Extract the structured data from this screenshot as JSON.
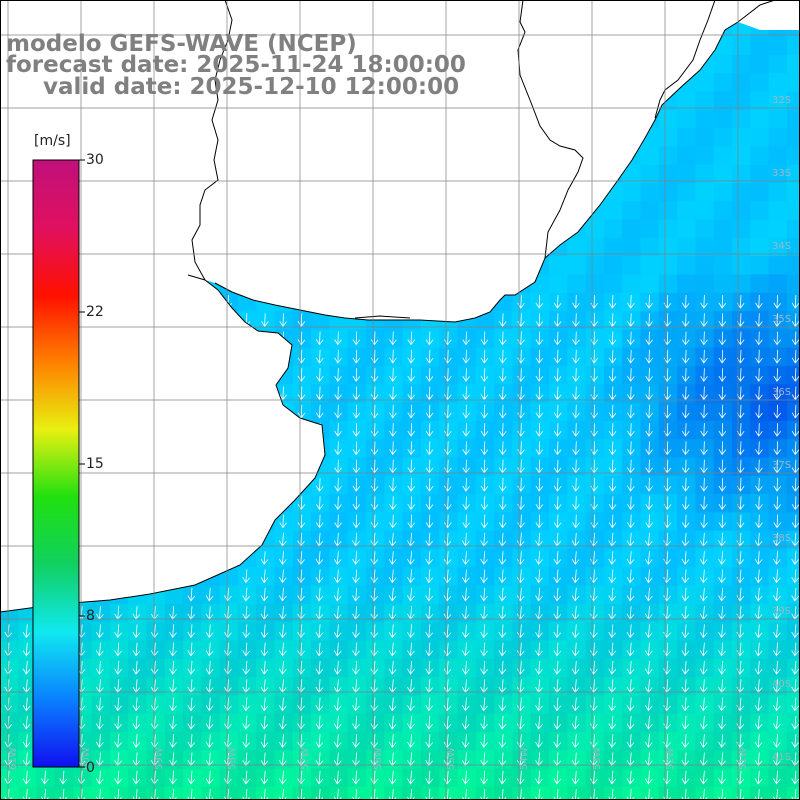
{
  "title": {
    "line1": "modelo GEFS-WAVE (NCEP)",
    "line2": "forecast date: 2025-11-24 18:00:00",
    "line3": "valid date: 2025-12-10 12:00:00"
  },
  "colorbar": {
    "unit": "[m/s]",
    "ticks": [
      "30",
      "22",
      "15",
      "8",
      "0"
    ],
    "tick_values": [
      30,
      22,
      15,
      8,
      0
    ],
    "range": [
      0,
      30
    ],
    "colors": [
      "#1010f0",
      "#0a80ff",
      "#10e8f0",
      "#10d060",
      "#20e010",
      "#e8f010",
      "#ff8000",
      "#ff1000",
      "#e01060",
      "#c0107a"
    ]
  },
  "map": {
    "field": "wind speed and direction",
    "arrow_color": "#ffffff",
    "land_color": "#ffffff",
    "coast_color": "#000000",
    "grid_color": "#808080",
    "lat_labels": [
      "32S",
      "33S",
      "34S",
      "35S",
      "36S",
      "37S",
      "38S",
      "39S",
      "40S",
      "41S"
    ],
    "lon_labels": [
      "61W",
      "60W",
      "59W",
      "58W",
      "57W",
      "56W",
      "55W",
      "54W",
      "53W",
      "52W",
      "51W"
    ]
  }
}
